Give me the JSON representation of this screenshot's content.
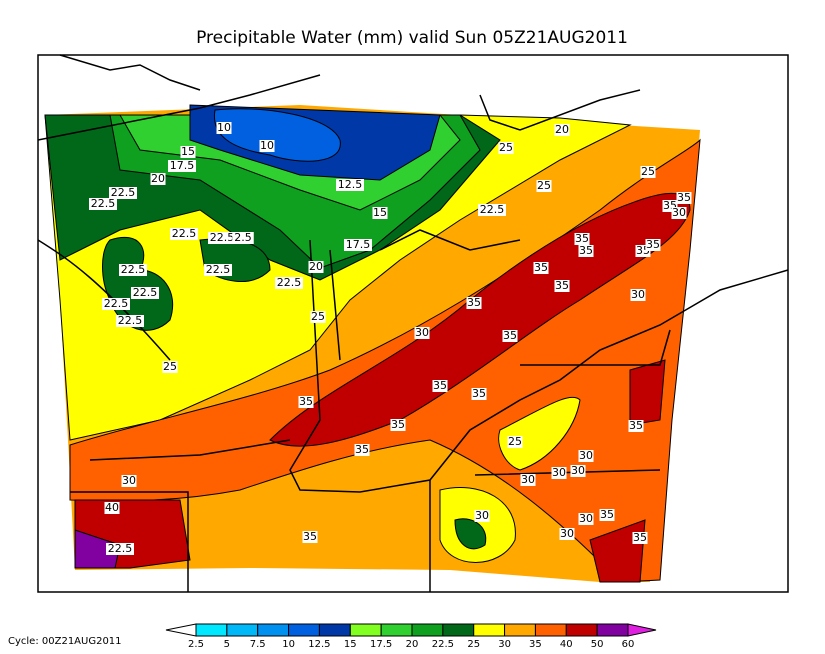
{
  "title": "Precipitable Water (mm) valid Sun 05Z21AUG2011",
  "cycle": "Cycle: 00Z21AUG2011",
  "colorbar": {
    "ticks": [
      2.5,
      5,
      7.5,
      10,
      12.5,
      15,
      17.5,
      20,
      22.5,
      25,
      30,
      35,
      40,
      50,
      60
    ],
    "colors": [
      "#ffffff",
      "#00e8ff",
      "#00b8f8",
      "#0090f0",
      "#0060e0",
      "#0038a8",
      "#80ff20",
      "#30d030",
      "#10a020",
      "#006818",
      "#ffff00",
      "#ffa800",
      "#ff6000",
      "#c00000",
      "#8000a0",
      "#e020e0"
    ]
  },
  "map": {
    "labels": [
      "10",
      "10",
      "15",
      "17.5",
      "20",
      "22.5",
      "22.5",
      "12.5",
      "15",
      "17.5",
      "20",
      "22.5",
      "22.5",
      "2.5",
      "22.5",
      "22.5",
      "22.5",
      "22.5",
      "22.5",
      "22.5",
      "25",
      "25",
      "30",
      "35",
      "35",
      "35",
      "35",
      "35",
      "35",
      "35",
      "35",
      "35",
      "35",
      "35",
      "35",
      "35",
      "35",
      "35",
      "30",
      "30",
      "25",
      "25",
      "22.5",
      "20",
      "25",
      "25",
      "30",
      "30",
      "30",
      "30",
      "30",
      "35",
      "40",
      "22.5",
      "30",
      "30",
      "30",
      "35",
      "35",
      "35"
    ]
  }
}
